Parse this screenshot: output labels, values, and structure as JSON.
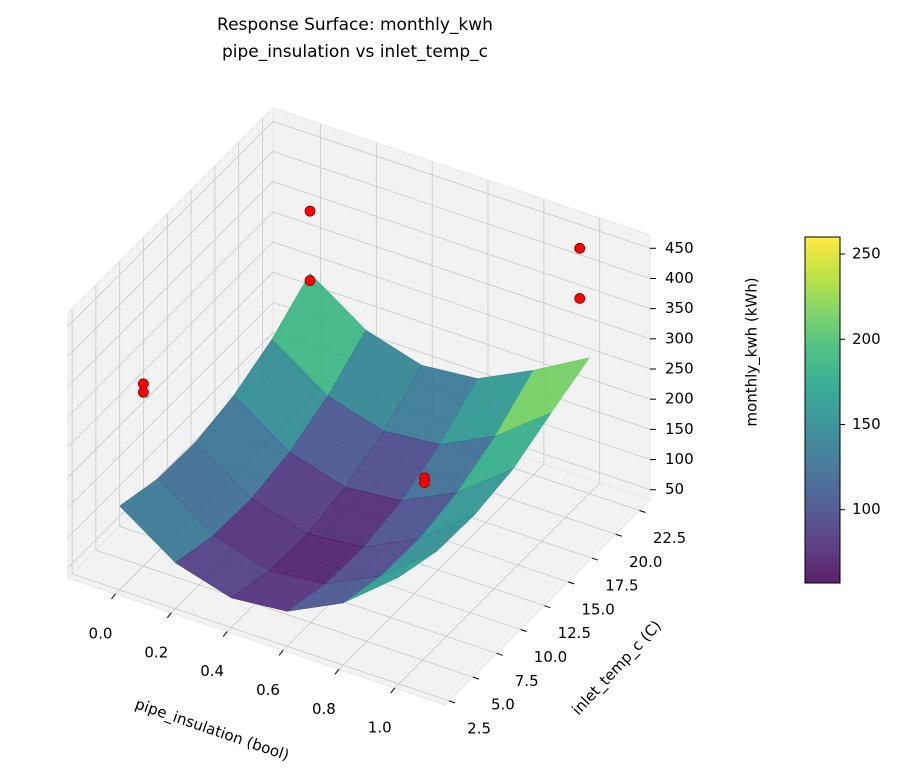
{
  "chart_data": {
    "type": "surface3d",
    "title": "Response Surface: monthly_kwh",
    "subtitle": "pipe_insulation vs inlet_temp_c",
    "x_label": "pipe_insulation (bool)",
    "y_label": "inlet_temp_c (C)",
    "z_label": "monthly_kwh (kWh)",
    "xlim": [
      -0.17,
      1.18
    ],
    "ylim": [
      2.07,
      23.6
    ],
    "zlim": [
      33,
      472
    ],
    "xticks": [
      {
        "value": 0,
        "label": "0.0"
      },
      0.2,
      0.4,
      0.6,
      0.8,
      {
        "value": 1,
        "label": "1.0"
      }
    ],
    "yticks": [
      2.5,
      {
        "value": 5,
        "label": "5.0"
      },
      7.5,
      {
        "value": 10,
        "label": "10.0"
      },
      12.5,
      {
        "value": 15,
        "label": "15.0"
      },
      17.5,
      {
        "value": 20,
        "label": "20.0"
      },
      22.5
    ],
    "zticks": [
      50,
      100,
      150,
      200,
      250,
      300,
      350,
      400,
      450
    ],
    "grid": true,
    "colormap": "viridis",
    "clim": [
      57,
      260
    ],
    "colorbar_ticks": [
      100,
      150,
      200,
      250
    ],
    "surface": {
      "x": [
        0,
        0.2,
        0.4,
        0.6,
        0.8,
        1
      ],
      "y": [
        2.5,
        6.5,
        10.5,
        14.5,
        18.5,
        22.5
      ],
      "z": [
        [
          172,
          154,
          152,
          166,
          196,
          242
        ],
        [
          109,
          91,
          89,
          103,
          133,
          179
        ],
        [
          82,
          64,
          62,
          76,
          106,
          152
        ],
        [
          91,
          73,
          71,
          85,
          115,
          161
        ],
        [
          136,
          118,
          116,
          130,
          160,
          206
        ],
        [
          210,
          190,
          188,
          200,
          230,
          258
        ]
      ]
    },
    "points": {
      "color": "#ff0000",
      "x": [
        0,
        0,
        0,
        0,
        1,
        1,
        1,
        1
      ],
      "y": [
        22.5,
        22.5,
        5,
        5,
        21.5,
        21.5,
        5.2,
        5.2
      ],
      "z": [
        345,
        230,
        335,
        321,
        455,
        372,
        332,
        324
      ]
    }
  }
}
